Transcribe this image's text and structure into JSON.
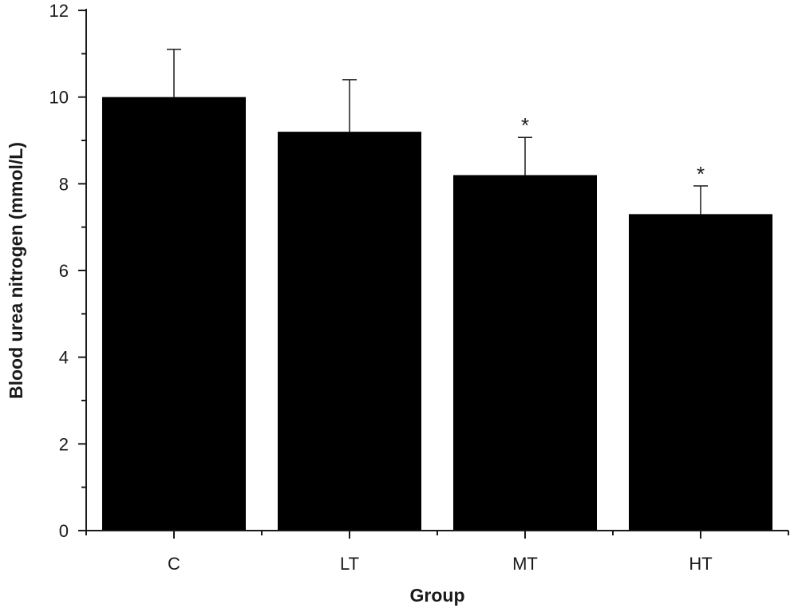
{
  "chart_data": {
    "type": "bar",
    "title": "",
    "xlabel": "Group",
    "ylabel": "Blood urea nitrogen (mmol/L)",
    "categories": [
      "C",
      "LT",
      "MT",
      "HT"
    ],
    "values": [
      10.0,
      9.2,
      8.2,
      7.3
    ],
    "errors": [
      1.1,
      1.2,
      0.87,
      0.65
    ],
    "annotations": [
      "",
      "",
      "*",
      "*"
    ],
    "ylim": [
      0,
      12
    ],
    "yticks": [
      0,
      2,
      4,
      6,
      8,
      10,
      12
    ],
    "grid": false,
    "legend": "none",
    "bar_color": "#000000",
    "axis_color": "#1a1a1a"
  }
}
